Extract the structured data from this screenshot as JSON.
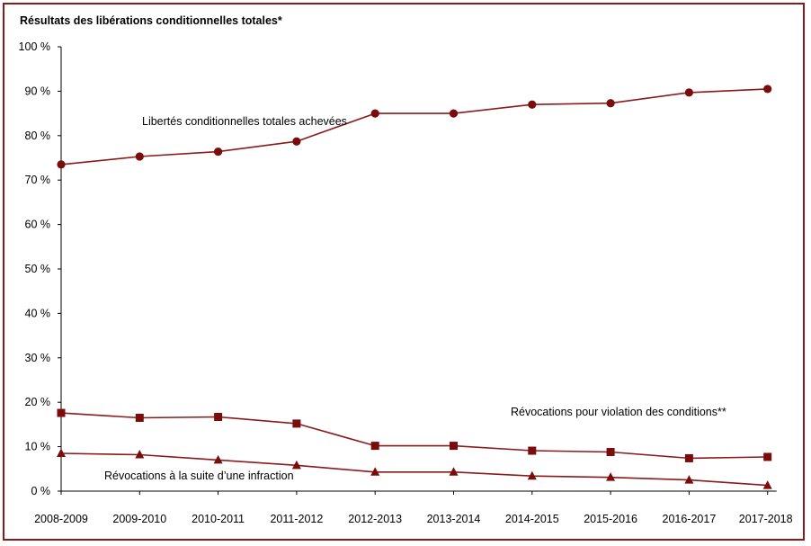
{
  "chart_data": {
    "type": "line",
    "title": "Résultats des libérations conditionnelles totales*",
    "xlabel": "",
    "ylabel": "",
    "ylim": [
      0,
      100
    ],
    "y_ticks": [
      "0 %",
      "10 %",
      "20 %",
      "30 %",
      "40 %",
      "50 %",
      "60 %",
      "70 %",
      "80 %",
      "90 %",
      "100 %"
    ],
    "grid": false,
    "categories": [
      "2008-2009",
      "2009-2010",
      "2010-2011",
      "2011-2012",
      "2012-2013",
      "2013-2014",
      "2014-2015",
      "2015-2016",
      "2016-2017",
      "2017-2018"
    ],
    "series": [
      {
        "name": "Libertés conditionnelles totales achevées",
        "marker": "circle",
        "values": [
          73.5,
          75.3,
          76.4,
          78.7,
          85.0,
          85.0,
          87.0,
          87.3,
          89.7,
          90.5
        ]
      },
      {
        "name": "Révocations pour violation des conditions**",
        "marker": "square",
        "values": [
          17.6,
          16.5,
          16.7,
          15.2,
          10.2,
          10.2,
          9.1,
          8.8,
          7.4,
          7.7
        ]
      },
      {
        "name": "Révocations à la suite d’une infraction",
        "marker": "triangle",
        "values": [
          8.5,
          8.2,
          7.0,
          5.8,
          4.3,
          4.3,
          3.4,
          3.1,
          2.5,
          1.3
        ]
      }
    ],
    "colors": {
      "line": "#8b1a1a",
      "marker": "#7a0c0c",
      "frame": "#8b1a1a",
      "axis": "#000000"
    }
  }
}
